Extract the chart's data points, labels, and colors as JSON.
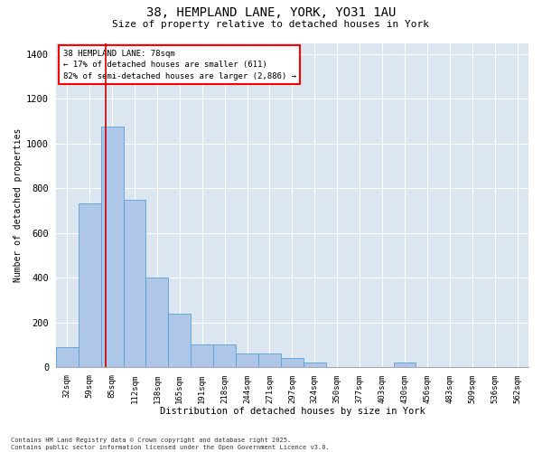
{
  "title_line1": "38, HEMPLAND LANE, YORK, YO31 1AU",
  "title_line2": "Size of property relative to detached houses in York",
  "xlabel": "Distribution of detached houses by size in York",
  "ylabel": "Number of detached properties",
  "bar_labels": [
    "32sqm",
    "59sqm",
    "85sqm",
    "112sqm",
    "138sqm",
    "165sqm",
    "191sqm",
    "218sqm",
    "244sqm",
    "271sqm",
    "297sqm",
    "324sqm",
    "350sqm",
    "377sqm",
    "403sqm",
    "430sqm",
    "456sqm",
    "483sqm",
    "509sqm",
    "536sqm",
    "562sqm"
  ],
  "bar_values": [
    90,
    730,
    1075,
    750,
    400,
    240,
    100,
    100,
    60,
    60,
    40,
    20,
    0,
    0,
    0,
    20,
    0,
    0,
    0,
    0,
    0
  ],
  "bar_color": "#aec6e8",
  "bar_edge_color": "#5a9fd4",
  "ylim": [
    0,
    1450
  ],
  "yticks": [
    0,
    200,
    400,
    600,
    800,
    1000,
    1200,
    1400
  ],
  "property_line_label": "38 HEMPLAND LANE: 78sqm",
  "annotation_line2": "← 17% of detached houses are smaller (611)",
  "annotation_line3": "82% of semi-detached houses are larger (2,886) →",
  "red_line_color": "#cc0000",
  "background_color": "#dce6f0",
  "footer_line1": "Contains HM Land Registry data © Crown copyright and database right 2025.",
  "footer_line2": "Contains public sector information licensed under the Open Government Licence v3.0."
}
